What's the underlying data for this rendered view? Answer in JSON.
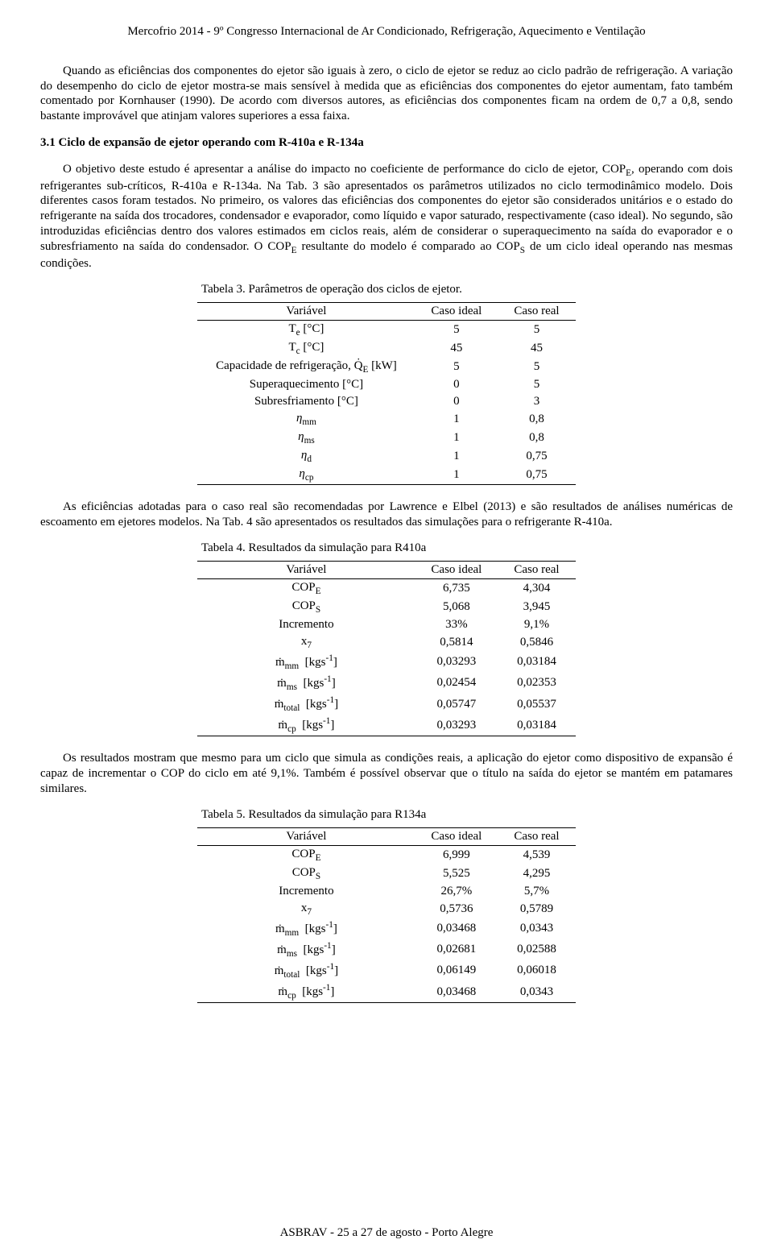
{
  "header": "Mercofrio 2014 - 9º Congresso Internacional de Ar Condicionado, Refrigeração, Aquecimento e Ventilação",
  "footer": "ASBRAV - 25 a 27 de agosto - Porto Alegre",
  "para1": "Quando as eficiências dos componentes do ejetor são iguais à zero, o ciclo de ejetor se reduz ao ciclo padrão de refrigeração. A variação do desempenho do ciclo de ejetor mostra-se mais sensível à medida que as eficiências dos componentes do ejetor aumentam, fato também comentado por Kornhauser (1990). De acordo com diversos autores, as eficiências dos componentes ficam na ordem de 0,7 a 0,8, sendo bastante improvável que atinjam valores superiores a essa faixa.",
  "section_title": "3.1 Ciclo de expansão de ejetor operando com R-410a e R-134a",
  "para2a": "O objetivo deste estudo é apresentar a análise do impacto no coeficiente de performance do ciclo de ejetor, COP",
  "para2b": ", operando com dois refrigerantes sub-críticos, R-410a e R-134a. Na Tab. 3 são apresentados os parâmetros utilizados no ciclo termodinâmico modelo. Dois diferentes casos foram testados. No primeiro, os valores das eficiências dos componentes do ejetor são considerados unitários e o estado do refrigerante na saída dos trocadores, condensador e evaporador, como líquido e vapor saturado, respectivamente (caso ideal). No segundo, são introduzidas eficiências dentro dos valores estimados em ciclos reais, além de considerar o superaquecimento na saída do evaporador e o subresfriamento na saída do condensador. O COP",
  "para2c": " resultante do modelo é comparado ao COP",
  "para2d": " de um ciclo ideal operando nas mesmas condições.",
  "para3": "As eficiências adotadas para o caso real são recomendadas por Lawrence e Elbel (2013) e são resultados de análises numéricas de escoamento em ejetores modelos. Na Tab. 4 são apresentados os resultados das simulações para o refrigerante R-410a.",
  "para4": "Os resultados mostram que mesmo para um ciclo que simula as condições reais, a aplicação do ejetor como dispositivo de expansão é capaz de incrementar o COP do ciclo em até 9,1%. Também é possível observar que o título na saída do ejetor se mantém em patamares similares.",
  "table3": {
    "caption": "Tabela 3. Parâmetros de operação dos ciclos de ejetor.",
    "head": {
      "c1": "Variável",
      "c2": "Caso ideal",
      "c3": "Caso real"
    },
    "rows": [
      {
        "var_html": "T<sub>e</sub> [°C]",
        "ideal": "5",
        "real": "5"
      },
      {
        "var_html": "T<sub>c</sub> [°C]",
        "ideal": "45",
        "real": "45"
      },
      {
        "var_html": "Capacidade de refrigeração, Q̇<sub>E</sub> [kW]",
        "ideal": "5",
        "real": "5"
      },
      {
        "var_html": "Superaquecimento [°C]",
        "ideal": "0",
        "real": "5"
      },
      {
        "var_html": "Subresfriamento [°C]",
        "ideal": "0",
        "real": "3"
      },
      {
        "var_html": "<span class=\"eq\">η</span><sub>mm</sub>",
        "ideal": "1",
        "real": "0,8"
      },
      {
        "var_html": "<span class=\"eq\">η</span><sub>ms</sub>",
        "ideal": "1",
        "real": "0,8"
      },
      {
        "var_html": "<span class=\"eq\">η</span><sub>d</sub>",
        "ideal": "1",
        "real": "0,75"
      },
      {
        "var_html": "<span class=\"eq\">η</span><sub>cp</sub>",
        "ideal": "1",
        "real": "0,75"
      }
    ]
  },
  "table4": {
    "caption": "Tabela 4. Resultados da simulação para R410a",
    "head": {
      "c1": "Variável",
      "c2": "Caso ideal",
      "c3": "Caso real"
    },
    "rows": [
      {
        "var_html": "COP<sub>E</sub>",
        "ideal": "6,735",
        "real": "4,304"
      },
      {
        "var_html": "COP<sub>S</sub>",
        "ideal": "5,068",
        "real": "3,945"
      },
      {
        "var_html": "Incremento",
        "ideal": "33%",
        "real": "9,1%"
      },
      {
        "var_html": "x<sub>7</sub>",
        "ideal": "0,5814",
        "real": "0,5846"
      },
      {
        "var_html": "ṁ<sub>mm</sub>&nbsp; [kgs<sup>-1</sup>]",
        "ideal": "0,03293",
        "real": "0,03184"
      },
      {
        "var_html": "ṁ<sub>ms</sub>&nbsp; [kgs<sup>-1</sup>]",
        "ideal": "0,02454",
        "real": "0,02353"
      },
      {
        "var_html": "ṁ<sub>total</sub>&nbsp; [kgs<sup>-1</sup>]",
        "ideal": "0,05747",
        "real": "0,05537"
      },
      {
        "var_html": "ṁ<sub>cp</sub>&nbsp; [kgs<sup>-1</sup>]",
        "ideal": "0,03293",
        "real": "0,03184"
      }
    ]
  },
  "table5": {
    "caption": "Tabela 5. Resultados da simulação para R134a",
    "head": {
      "c1": "Variável",
      "c2": "Caso ideal",
      "c3": "Caso real"
    },
    "rows": [
      {
        "var_html": "COP<sub>E</sub>",
        "ideal": "6,999",
        "real": "4,539"
      },
      {
        "var_html": "COP<sub>S</sub>",
        "ideal": "5,525",
        "real": "4,295"
      },
      {
        "var_html": "Incremento",
        "ideal": "26,7%",
        "real": "5,7%"
      },
      {
        "var_html": "x<sub>7</sub>",
        "ideal": "0,5736",
        "real": "0,5789"
      },
      {
        "var_html": "ṁ<sub>mm</sub>&nbsp; [kgs<sup>-1</sup>]",
        "ideal": "0,03468",
        "real": "0,0343"
      },
      {
        "var_html": "ṁ<sub>ms</sub>&nbsp; [kgs<sup>-1</sup>]",
        "ideal": "0,02681",
        "real": "0,02588"
      },
      {
        "var_html": "ṁ<sub>total</sub>&nbsp; [kgs<sup>-1</sup>]",
        "ideal": "0,06149",
        "real": "0,06018"
      },
      {
        "var_html": "ṁ<sub>cp</sub>&nbsp; [kgs<sup>-1</sup>]",
        "ideal": "0,03468",
        "real": "0,0343"
      }
    ]
  }
}
